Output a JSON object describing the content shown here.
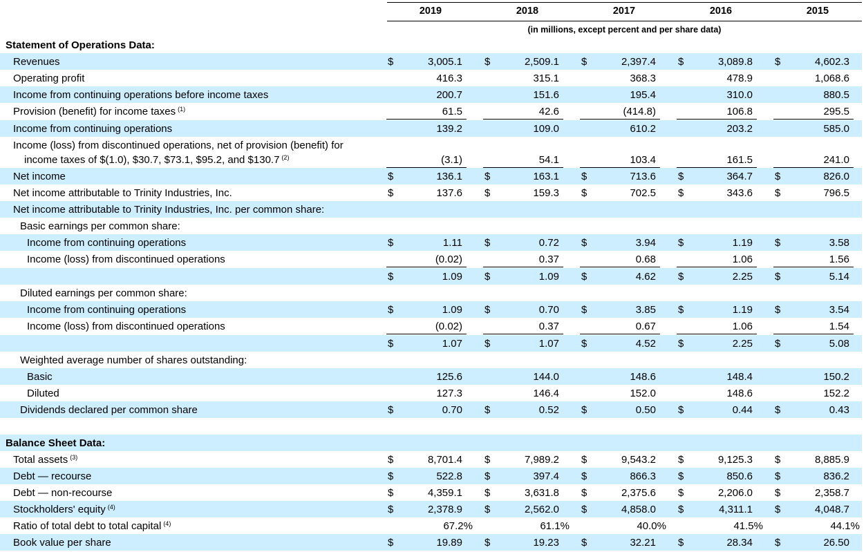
{
  "years": [
    "2019",
    "2018",
    "2017",
    "2016",
    "2015"
  ],
  "units_note": "(in millions, except percent and per share data)",
  "sections": {
    "operations_title": "Statement of Operations Data:",
    "balance_title": "Balance Sheet Data:"
  },
  "currency_symbol": "$",
  "rows": [
    {
      "label": "Revenues",
      "values": [
        "3,005.1",
        "2,509.1",
        "2,397.4",
        "3,089.8",
        "4,602.3"
      ]
    },
    {
      "label": "Operating profit",
      "values": [
        "416.3",
        "315.1",
        "368.3",
        "478.9",
        "1,068.6"
      ]
    },
    {
      "label": "Income from continuing operations before income taxes",
      "values": [
        "200.7",
        "151.6",
        "195.4",
        "310.0",
        "880.5"
      ]
    },
    {
      "label": "Provision (benefit) for income taxes",
      "note": "(1)",
      "values": [
        "61.5",
        "42.6",
        "(414.8)",
        "106.8",
        "295.5"
      ]
    },
    {
      "label": "Income from continuing operations",
      "values": [
        "139.2",
        "109.0",
        "610.2",
        "203.2",
        "585.0"
      ]
    },
    {
      "label_line1": "Income (loss) from discontinued operations, net of provision (benefit) for",
      "label_line2": "income taxes of $(1.0), $30.7, $73.1, $95.2, and $130.7",
      "note": "(2)",
      "values": [
        "(3.1)",
        "54.1",
        "103.4",
        "161.5",
        "241.0"
      ]
    },
    {
      "label": "Net income",
      "values": [
        "136.1",
        "163.1",
        "713.6",
        "364.7",
        "826.0"
      ]
    },
    {
      "label": "Net income attributable to Trinity Industries, Inc.",
      "values": [
        "137.6",
        "159.3",
        "702.5",
        "343.6",
        "796.5"
      ]
    },
    {
      "label": "Net income attributable to Trinity Industries, Inc. per common share:"
    },
    {
      "label": "Basic earnings per common share:"
    },
    {
      "label": "Income from continuing operations",
      "values": [
        "1.11",
        "0.72",
        "3.94",
        "1.19",
        "3.58"
      ]
    },
    {
      "label": "Income (loss) from discontinued operations",
      "values": [
        "(0.02)",
        "0.37",
        "0.68",
        "1.06",
        "1.56"
      ]
    },
    {
      "label": "",
      "values": [
        "1.09",
        "1.09",
        "4.62",
        "2.25",
        "5.14"
      ]
    },
    {
      "label": "Diluted earnings per common share:"
    },
    {
      "label": "Income from continuing operations",
      "values": [
        "1.09",
        "0.70",
        "3.85",
        "1.19",
        "3.54"
      ]
    },
    {
      "label": "Income (loss) from discontinued operations",
      "values": [
        "(0.02)",
        "0.37",
        "0.67",
        "1.06",
        "1.54"
      ]
    },
    {
      "label": "",
      "values": [
        "1.07",
        "1.07",
        "4.52",
        "2.25",
        "5.08"
      ]
    },
    {
      "label": "Weighted average number of shares outstanding:"
    },
    {
      "label": "Basic",
      "values": [
        "125.6",
        "144.0",
        "148.6",
        "148.4",
        "150.2"
      ]
    },
    {
      "label": "Diluted",
      "values": [
        "127.3",
        "146.4",
        "152.0",
        "148.6",
        "152.2"
      ]
    },
    {
      "label": "Dividends declared per common share",
      "values": [
        "0.70",
        "0.52",
        "0.50",
        "0.44",
        "0.43"
      ]
    },
    {
      "label": "Total assets",
      "note": "(3)",
      "values": [
        "8,701.4",
        "7,989.2",
        "9,543.2",
        "9,125.3",
        "8,885.9"
      ]
    },
    {
      "label": "Debt — recourse",
      "values": [
        "522.8",
        "397.4",
        "866.3",
        "850.6",
        "836.2"
      ]
    },
    {
      "label": "Debt — non-recourse",
      "values": [
        "4,359.1",
        "3,631.8",
        "2,375.6",
        "2,206.0",
        "2,358.7"
      ]
    },
    {
      "label": "Stockholders' equity",
      "note": "(4)",
      "values": [
        "2,378.9",
        "2,562.0",
        "4,858.0",
        "4,311.1",
        "4,048.7"
      ]
    },
    {
      "label": "Ratio of total debt to total capital",
      "note": "(4)",
      "values": [
        "67.2%",
        "61.1%",
        "40.0%",
        "41.5%",
        "44.1%"
      ]
    },
    {
      "label": "Book value per share",
      "values": [
        "19.89",
        "19.23",
        "32.21",
        "28.34",
        "26.50"
      ]
    }
  ]
}
